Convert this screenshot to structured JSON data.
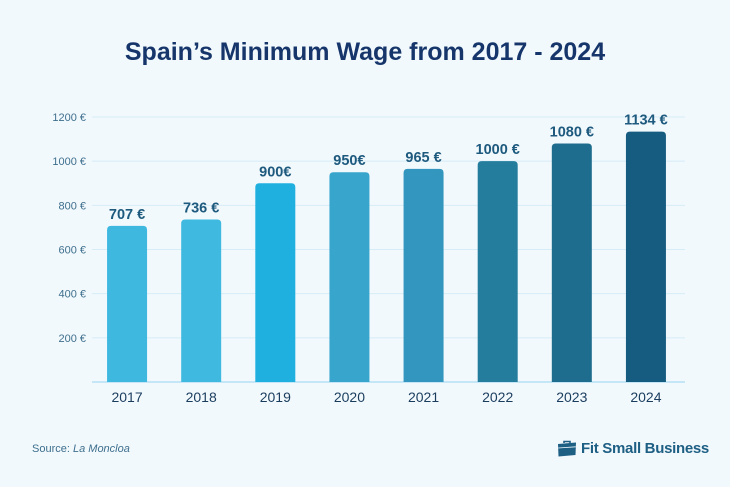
{
  "chart_data": {
    "type": "bar",
    "title": "Spain’s Minimum Wage from 2017 - 2024",
    "categories": [
      "2017",
      "2018",
      "2019",
      "2020",
      "2021",
      "2022",
      "2023",
      "2024"
    ],
    "values": [
      707,
      736,
      900,
      950,
      965,
      1000,
      1080,
      1134
    ],
    "data_labels": [
      "707 €",
      "736 €",
      "900€",
      "950€",
      "965 €",
      "1000 €",
      "1080 €",
      "1134 €"
    ],
    "bar_colors": [
      "#3fb8e0",
      "#40b9e1",
      "#1fb0e0",
      "#37a5cc",
      "#3296be",
      "#247d9d",
      "#1e6d8e",
      "#165c80"
    ],
    "yticks": [
      200,
      400,
      600,
      800,
      1000,
      1200
    ],
    "ytick_labels": [
      "200 €",
      "400 €",
      "600 €",
      "800 €",
      "1000 €",
      "1200 €"
    ],
    "ylim": [
      0,
      1200
    ],
    "xlabel": "",
    "ylabel": "",
    "grid": true,
    "legend": "none"
  },
  "footer": {
    "source_prefix": "Source:",
    "source_name": "La Moncloa",
    "brand": "Fit Small Business",
    "brand_icon": "briefcase-icon"
  },
  "colors": {
    "title": "#16366b",
    "label": "#1e5a7e",
    "axis": "#3e6f8d",
    "grid": "#d6ecf7",
    "baseline": "#a8dcf2"
  }
}
